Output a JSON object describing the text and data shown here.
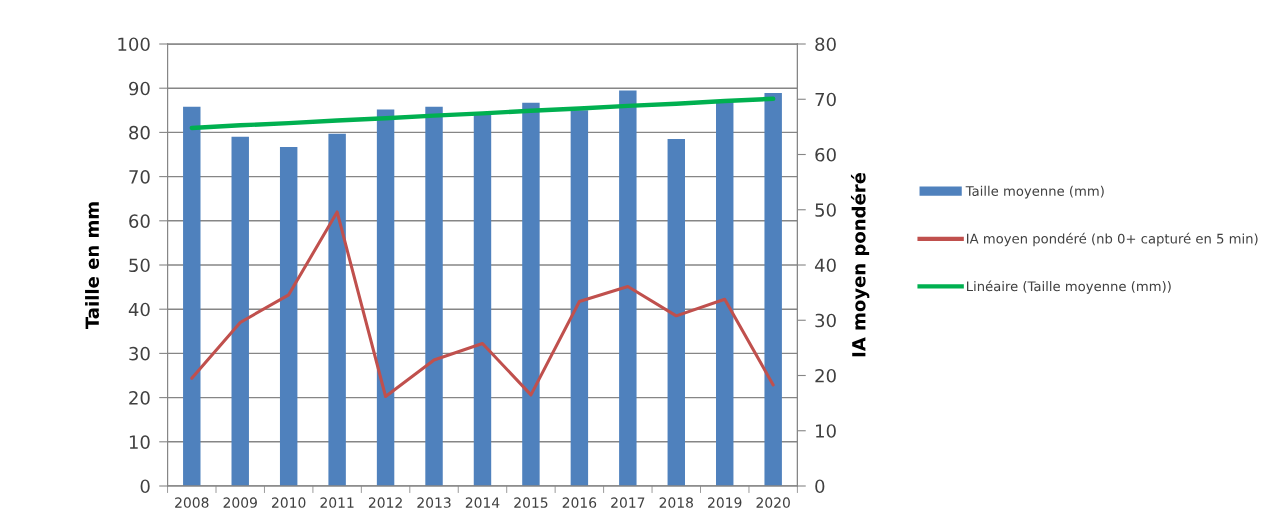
{
  "chart_data": {
    "type": "bar",
    "categories": [
      "2008",
      "2009",
      "2010",
      "2011",
      "2012",
      "2013",
      "2014",
      "2015",
      "2016",
      "2017",
      "2018",
      "2019",
      "2020"
    ],
    "ylabel": "Taille en mm",
    "y2label": "IA moyen pondéré",
    "ylim": [
      0,
      100
    ],
    "yticks": [
      0,
      10,
      20,
      30,
      40,
      50,
      60,
      70,
      80,
      90,
      100
    ],
    "y2lim": [
      0,
      80
    ],
    "y2ticks": [
      0,
      10,
      20,
      30,
      40,
      50,
      60,
      70,
      80
    ],
    "grid": "y",
    "legend": "right",
    "series": [
      {
        "name": "Taille moyenne (mm)",
        "color": "#4f81bd",
        "values": [
          85.8,
          79.0,
          76.7,
          79.7,
          85.2,
          85.8,
          84.6,
          86.7,
          85.0,
          89.5,
          78.5,
          87.0,
          88.9
        ]
      },
      {
        "name": "IA moyen pondéré (nb 0+ capturé en 5 min)",
        "type": "line",
        "axis": "y2",
        "color": "#c0504d",
        "values": [
          19.5,
          29.6,
          34.6,
          49.6,
          16.2,
          22.8,
          25.8,
          16.5,
          33.4,
          36.1,
          30.8,
          33.8,
          18.3
        ]
      },
      {
        "name": "Linéaire (Taille moyenne (mm))",
        "type": "line",
        "color": "#00b050",
        "values": [
          81.0,
          81.6,
          82.1,
          82.7,
          83.2,
          83.8,
          84.3,
          84.9,
          85.4,
          86.0,
          86.5,
          87.1,
          87.6
        ]
      }
    ]
  }
}
